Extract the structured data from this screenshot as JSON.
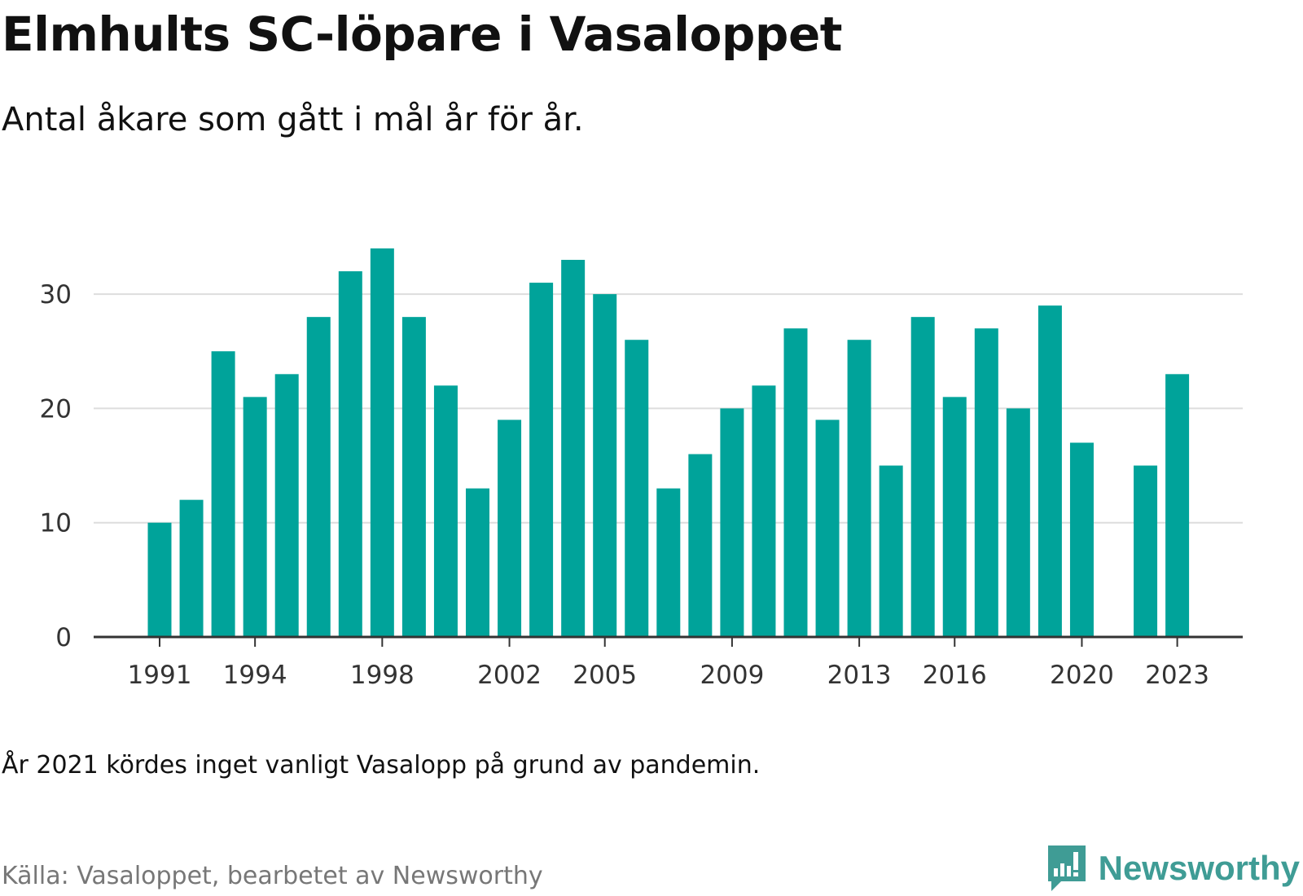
{
  "title": "Elmhults SC-löpare i Vasaloppet",
  "subtitle": "Antal åkare som gått i mål år för år.",
  "note": "År 2021 kördes inget vanligt Vasalopp på grund av pandemin.",
  "source": "Källa: Vasaloppet, bearbetet av Newsworthy",
  "brand": {
    "name": "Newsworthy",
    "icon": "newsworthy-logo-icon",
    "color": "#3f9c95"
  },
  "colors": {
    "bar": "#00a39a",
    "grid": "#dddddd",
    "axis": "#333333"
  },
  "chart_data": {
    "type": "bar",
    "title": "Elmhults SC-löpare i Vasaloppet",
    "subtitle": "Antal åkare som gått i mål år för år.",
    "xlabel": "",
    "ylabel": "",
    "categories": [
      1991,
      1992,
      1993,
      1994,
      1995,
      1996,
      1997,
      1998,
      1999,
      2000,
      2001,
      2002,
      2003,
      2004,
      2005,
      2006,
      2007,
      2008,
      2009,
      2010,
      2011,
      2012,
      2013,
      2014,
      2015,
      2016,
      2017,
      2018,
      2019,
      2020,
      2021,
      2022,
      2023
    ],
    "values": [
      10,
      12,
      25,
      21,
      23,
      28,
      32,
      34,
      28,
      22,
      13,
      19,
      31,
      33,
      30,
      26,
      13,
      16,
      20,
      22,
      27,
      19,
      26,
      15,
      28,
      21,
      27,
      20,
      29,
      17,
      null,
      15,
      23
    ],
    "x_tick_labels": [
      "1991",
      "1994",
      "1998",
      "2002",
      "2005",
      "2009",
      "2013",
      "2016",
      "2020",
      "2023"
    ],
    "y_ticks": [
      0,
      10,
      20,
      30
    ],
    "ylim": [
      0,
      35
    ],
    "grid": true,
    "legend": "none"
  }
}
